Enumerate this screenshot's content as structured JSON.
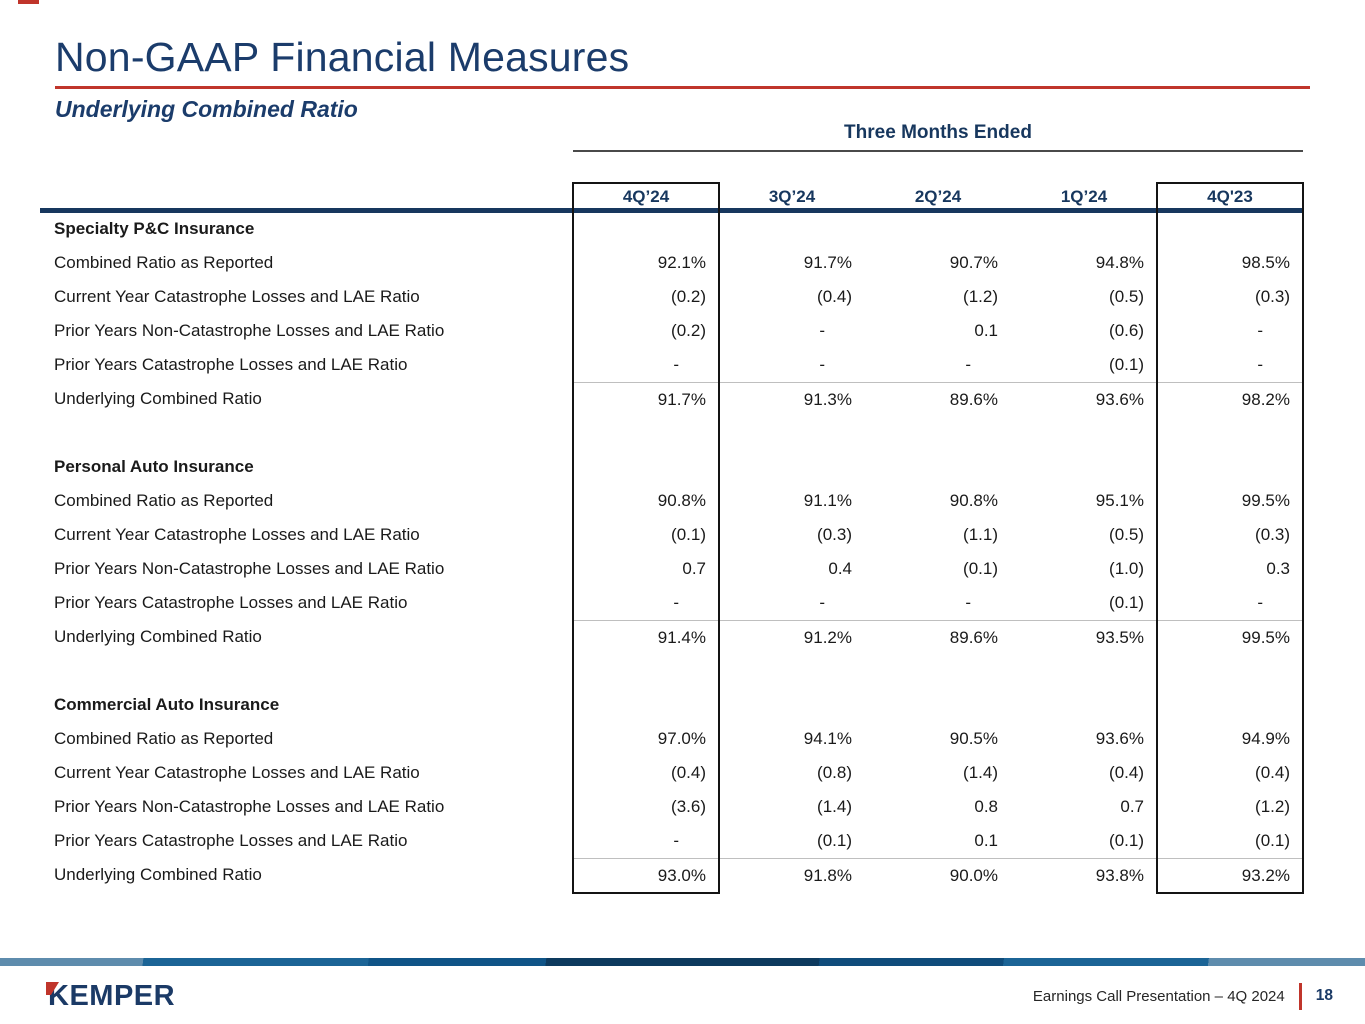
{
  "slide": {
    "title": "Non-GAAP Financial Measures",
    "subtitle": "Underlying Combined Ratio"
  },
  "table": {
    "group_header": "Three Months Ended",
    "columns": [
      "4Q’24",
      "3Q’24",
      "2Q’24",
      "1Q’24",
      "4Q'23"
    ],
    "sections": [
      {
        "name": "Specialty P&C Insurance",
        "rows": [
          {
            "label": "Combined Ratio as Reported",
            "values": [
              "92.1%",
              "91.7%",
              "90.7%",
              "94.8%",
              "98.5%"
            ]
          },
          {
            "label": "Current Year Catastrophe Losses and LAE Ratio",
            "values": [
              "(0.2)",
              "(0.4)",
              "(1.2)",
              "(0.5)",
              "(0.3)"
            ]
          },
          {
            "label": "Prior Years Non-Catastrophe Losses and LAE Ratio",
            "values": [
              "(0.2)",
              "-",
              "0.1",
              "(0.6)",
              "-"
            ]
          },
          {
            "label": "Prior Years Catastrophe Losses and LAE Ratio",
            "values": [
              "-",
              "-",
              "-",
              "(0.1)",
              "-"
            ]
          },
          {
            "label": "Underlying Combined Ratio",
            "values": [
              "91.7%",
              "91.3%",
              "89.6%",
              "93.6%",
              "98.2%"
            ]
          }
        ]
      },
      {
        "name": "Personal Auto Insurance",
        "rows": [
          {
            "label": "Combined Ratio as Reported",
            "values": [
              "90.8%",
              "91.1%",
              "90.8%",
              "95.1%",
              "99.5%"
            ]
          },
          {
            "label": "Current Year Catastrophe Losses and LAE Ratio",
            "values": [
              "(0.1)",
              "(0.3)",
              "(1.1)",
              "(0.5)",
              "(0.3)"
            ]
          },
          {
            "label": "Prior Years Non-Catastrophe Losses and LAE Ratio",
            "values": [
              "0.7",
              "0.4",
              "(0.1)",
              "(1.0)",
              "0.3"
            ]
          },
          {
            "label": "Prior Years Catastrophe Losses and LAE Ratio",
            "values": [
              "-",
              "-",
              "-",
              "(0.1)",
              "-"
            ]
          },
          {
            "label": "Underlying Combined Ratio",
            "values": [
              "91.4%",
              "91.2%",
              "89.6%",
              "93.5%",
              "99.5%"
            ]
          }
        ]
      },
      {
        "name": "Commercial Auto Insurance",
        "rows": [
          {
            "label": "Combined Ratio as Reported",
            "values": [
              "97.0%",
              "94.1%",
              "90.5%",
              "93.6%",
              "94.9%"
            ]
          },
          {
            "label": "Current Year Catastrophe Losses and LAE Ratio",
            "values": [
              "(0.4)",
              "(0.8)",
              "(1.4)",
              "(0.4)",
              "(0.4)"
            ]
          },
          {
            "label": "Prior Years Non-Catastrophe Losses and LAE Ratio",
            "values": [
              "(3.6)",
              "(1.4)",
              "0.8",
              "0.7",
              "(1.2)"
            ]
          },
          {
            "label": "Prior Years Catastrophe Losses and LAE Ratio",
            "values": [
              "-",
              "(0.1)",
              "0.1",
              "(0.1)",
              "(0.1)"
            ]
          },
          {
            "label": "Underlying Combined Ratio",
            "values": [
              "93.0%",
              "91.8%",
              "90.0%",
              "93.8%",
              "93.2%"
            ]
          }
        ]
      }
    ]
  },
  "footer": {
    "brand": "KEMPER",
    "caption": "Earnings Call Presentation – 4Q 2024",
    "page_number": "18"
  },
  "colors": {
    "navy": "#17375e",
    "title_navy": "#1b3c6b",
    "brand_red": "#c0352b",
    "grid_gray": "#bfbfbf"
  }
}
